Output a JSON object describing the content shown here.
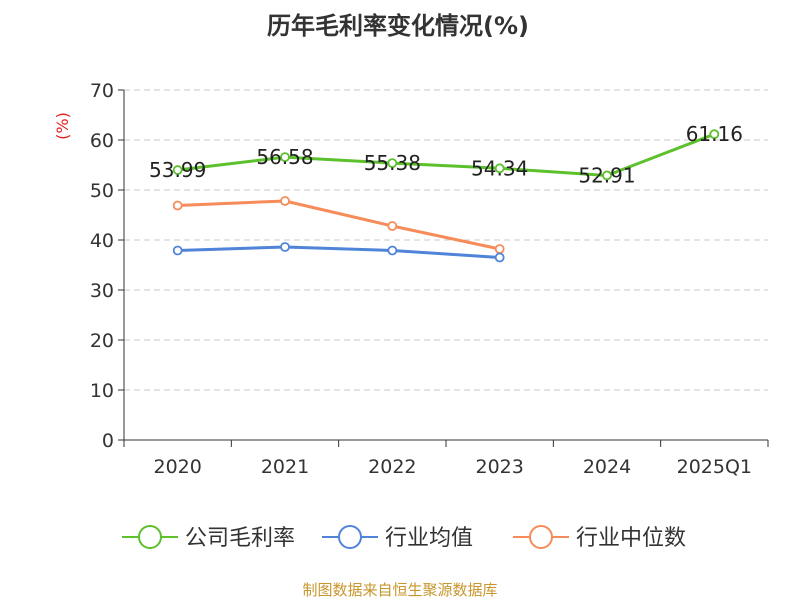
{
  "chart_data": {
    "type": "line",
    "title": "历年毛利率变化情况(%)",
    "ylabel": "(%)",
    "xlabel": "",
    "categories": [
      "2020",
      "2021",
      "2022",
      "2023",
      "2024",
      "2025Q1"
    ],
    "ylim": [
      0,
      70
    ],
    "yticks": [
      0,
      10,
      20,
      30,
      40,
      50,
      60,
      70
    ],
    "grid": true,
    "legend_position": "bottom",
    "series": [
      {
        "name": "公司毛利率",
        "color": "#5cc12d",
        "values": [
          53.99,
          56.58,
          55.38,
          54.34,
          52.91,
          61.16
        ],
        "labels": [
          "53.99",
          "56.58",
          "55.38",
          "54.34",
          "52.91",
          "61.16"
        ]
      },
      {
        "name": "行业均值",
        "color": "#4f84d8",
        "values": [
          37.9,
          38.6,
          37.9,
          36.5,
          null,
          null
        ]
      },
      {
        "name": "行业中位数",
        "color": "#f58c5a",
        "values": [
          46.9,
          47.8,
          42.8,
          38.2,
          null,
          null
        ]
      }
    ]
  },
  "source": "制图数据来自恒生聚源数据库"
}
